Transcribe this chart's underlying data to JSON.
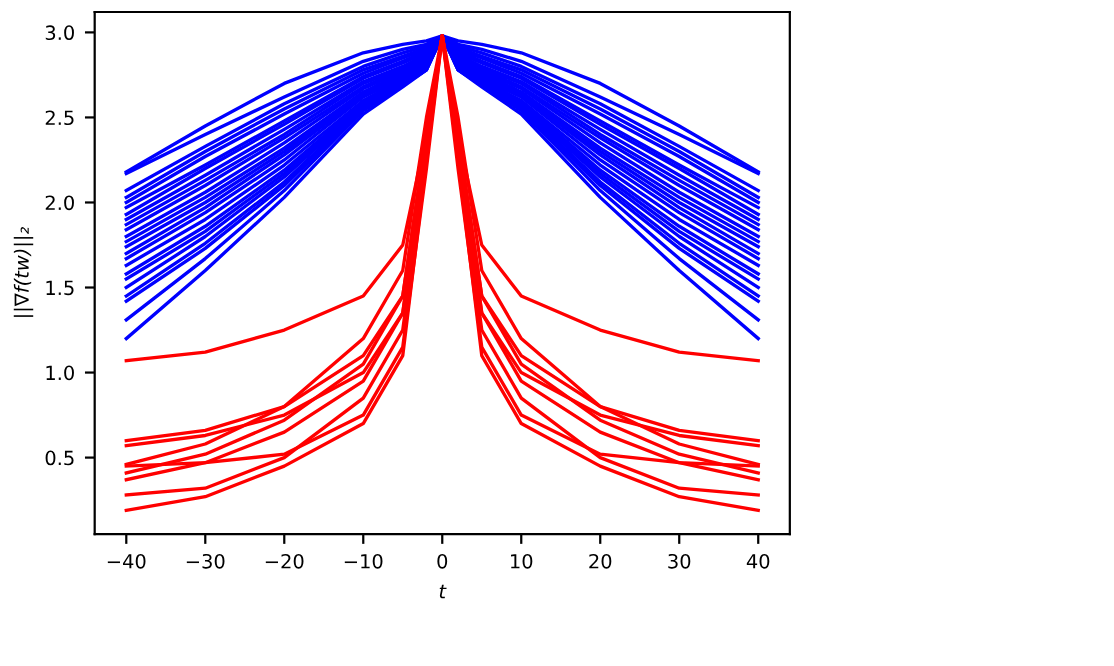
{
  "chart_data": {
    "type": "line",
    "xlabel": "t",
    "ylabel": "||∇f(tw)||₂",
    "x": [
      -40,
      -30,
      -20,
      -10,
      -5,
      -2,
      0,
      2,
      5,
      10,
      20,
      30,
      40
    ],
    "xlim": [
      -44,
      44
    ],
    "ylim": [
      0.05,
      3.12
    ],
    "xticks": [
      {
        "value": -40,
        "label": "−40"
      },
      {
        "value": -30,
        "label": "−30"
      },
      {
        "value": -20,
        "label": "−20"
      },
      {
        "value": -10,
        "label": "−10"
      },
      0,
      10,
      20,
      30,
      40
    ],
    "yticks": [
      0.5,
      {
        "value": 1,
        "label": "1.0"
      },
      1.5,
      {
        "value": 2,
        "label": "2.0"
      },
      2.5,
      {
        "value": 3,
        "label": "3.0"
      }
    ],
    "grid": false,
    "legend": false,
    "marker": "none",
    "line_style": "solid",
    "series": [
      {
        "color": "#0000ff",
        "values": [
          2.18,
          2.45,
          2.7,
          2.88,
          2.93,
          2.95,
          2.98,
          2.95,
          2.93,
          2.88,
          2.7,
          2.45,
          2.18
        ]
      },
      {
        "color": "#0000ff",
        "values": [
          2.17,
          2.4,
          2.62,
          2.83,
          2.9,
          2.93,
          2.98,
          2.93,
          2.9,
          2.83,
          2.62,
          2.4,
          2.17
        ]
      },
      {
        "color": "#0000ff",
        "values": [
          2.07,
          2.33,
          2.58,
          2.8,
          2.88,
          2.92,
          2.98,
          2.92,
          2.88,
          2.8,
          2.58,
          2.33,
          2.07
        ]
      },
      {
        "color": "#0000ff",
        "values": [
          2.03,
          2.3,
          2.55,
          2.78,
          2.86,
          2.91,
          2.98,
          2.91,
          2.86,
          2.78,
          2.55,
          2.3,
          2.03
        ]
      },
      {
        "color": "#0000ff",
        "values": [
          2.0,
          2.27,
          2.52,
          2.76,
          2.85,
          2.9,
          2.98,
          2.9,
          2.85,
          2.76,
          2.52,
          2.27,
          2.0
        ]
      },
      {
        "color": "#0000ff",
        "values": [
          1.97,
          2.22,
          2.48,
          2.74,
          2.83,
          2.89,
          2.98,
          2.89,
          2.83,
          2.74,
          2.48,
          2.22,
          1.97
        ]
      },
      {
        "color": "#0000ff",
        "values": [
          1.93,
          2.2,
          2.46,
          2.73,
          2.82,
          2.88,
          2.98,
          2.88,
          2.82,
          2.73,
          2.46,
          2.2,
          1.93
        ]
      },
      {
        "color": "#0000ff",
        "values": [
          1.9,
          2.16,
          2.43,
          2.71,
          2.8,
          2.87,
          2.98,
          2.87,
          2.8,
          2.71,
          2.43,
          2.16,
          1.9
        ]
      },
      {
        "color": "#0000ff",
        "values": [
          1.87,
          2.13,
          2.4,
          2.7,
          2.79,
          2.86,
          2.98,
          2.86,
          2.79,
          2.7,
          2.4,
          2.13,
          1.87
        ]
      },
      {
        "color": "#0000ff",
        "values": [
          1.84,
          2.1,
          2.38,
          2.68,
          2.78,
          2.85,
          2.98,
          2.85,
          2.78,
          2.68,
          2.38,
          2.1,
          1.84
        ]
      },
      {
        "color": "#0000ff",
        "values": [
          1.8,
          2.06,
          2.35,
          2.67,
          2.77,
          2.84,
          2.98,
          2.84,
          2.77,
          2.67,
          2.35,
          2.06,
          1.8
        ]
      },
      {
        "color": "#0000ff",
        "values": [
          1.77,
          2.03,
          2.32,
          2.65,
          2.76,
          2.84,
          2.98,
          2.84,
          2.76,
          2.65,
          2.32,
          2.03,
          1.77
        ]
      },
      {
        "color": "#0000ff",
        "values": [
          1.74,
          2.0,
          2.3,
          2.64,
          2.75,
          2.83,
          2.98,
          2.83,
          2.75,
          2.64,
          2.3,
          2.0,
          1.74
        ]
      },
      {
        "color": "#0000ff",
        "values": [
          1.7,
          1.97,
          2.28,
          2.63,
          2.74,
          2.82,
          2.98,
          2.82,
          2.74,
          2.63,
          2.28,
          1.97,
          1.7
        ]
      },
      {
        "color": "#0000ff",
        "values": [
          1.67,
          1.94,
          2.25,
          2.62,
          2.73,
          2.82,
          2.98,
          2.82,
          2.73,
          2.62,
          2.25,
          1.94,
          1.67
        ]
      },
      {
        "color": "#0000ff",
        "values": [
          1.63,
          1.9,
          2.22,
          2.6,
          2.72,
          2.81,
          2.98,
          2.81,
          2.72,
          2.6,
          2.22,
          1.9,
          1.63
        ]
      },
      {
        "color": "#0000ff",
        "values": [
          1.58,
          1.86,
          2.19,
          2.59,
          2.72,
          2.8,
          2.98,
          2.8,
          2.72,
          2.59,
          2.19,
          1.86,
          1.58
        ]
      },
      {
        "color": "#0000ff",
        "values": [
          1.55,
          1.83,
          2.17,
          2.58,
          2.71,
          2.8,
          2.98,
          2.8,
          2.71,
          2.58,
          2.17,
          1.83,
          1.55
        ]
      },
      {
        "color": "#0000ff",
        "values": [
          1.5,
          1.8,
          2.15,
          2.57,
          2.7,
          2.79,
          2.98,
          2.79,
          2.7,
          2.57,
          2.15,
          1.8,
          1.5
        ]
      },
      {
        "color": "#0000ff",
        "values": [
          1.45,
          1.76,
          2.12,
          2.56,
          2.7,
          2.79,
          2.98,
          2.79,
          2.7,
          2.56,
          2.12,
          1.76,
          1.45
        ]
      },
      {
        "color": "#0000ff",
        "values": [
          1.42,
          1.73,
          2.1,
          2.55,
          2.69,
          2.78,
          2.98,
          2.78,
          2.69,
          2.55,
          2.1,
          1.73,
          1.42
        ]
      },
      {
        "color": "#0000ff",
        "values": [
          1.31,
          1.67,
          2.07,
          2.54,
          2.69,
          2.78,
          2.98,
          2.78,
          2.69,
          2.54,
          2.07,
          1.67,
          1.31
        ]
      },
      {
        "color": "#0000ff",
        "values": [
          1.2,
          1.6,
          2.03,
          2.52,
          2.68,
          2.78,
          2.98,
          2.78,
          2.68,
          2.52,
          2.03,
          1.6,
          1.2
        ]
      },
      {
        "color": "#ff0000",
        "values": [
          1.07,
          1.12,
          1.25,
          1.45,
          1.75,
          2.4,
          2.98,
          2.4,
          1.75,
          1.45,
          1.25,
          1.12,
          1.07
        ]
      },
      {
        "color": "#ff0000",
        "values": [
          0.6,
          0.66,
          0.8,
          1.1,
          1.45,
          2.4,
          2.98,
          2.4,
          1.45,
          1.1,
          0.8,
          0.66,
          0.6
        ]
      },
      {
        "color": "#ff0000",
        "values": [
          0.57,
          0.63,
          0.75,
          1.0,
          1.35,
          2.35,
          2.98,
          2.35,
          1.35,
          1.0,
          0.75,
          0.63,
          0.57
        ]
      },
      {
        "color": "#ff0000",
        "values": [
          0.46,
          0.58,
          0.8,
          1.2,
          1.6,
          2.5,
          2.98,
          2.5,
          1.6,
          1.2,
          0.8,
          0.58,
          0.46
        ]
      },
      {
        "color": "#ff0000",
        "values": [
          0.45,
          0.47,
          0.52,
          0.75,
          1.15,
          2.2,
          2.98,
          2.2,
          1.15,
          0.75,
          0.52,
          0.47,
          0.45
        ]
      },
      {
        "color": "#ff0000",
        "values": [
          0.41,
          0.52,
          0.72,
          1.05,
          1.45,
          2.4,
          2.98,
          2.4,
          1.45,
          1.05,
          0.72,
          0.52,
          0.41
        ]
      },
      {
        "color": "#ff0000",
        "values": [
          0.37,
          0.47,
          0.65,
          0.95,
          1.35,
          2.35,
          2.98,
          2.35,
          1.35,
          0.95,
          0.65,
          0.47,
          0.37
        ]
      },
      {
        "color": "#ff0000",
        "values": [
          0.28,
          0.32,
          0.5,
          0.85,
          1.25,
          2.3,
          2.98,
          2.3,
          1.25,
          0.85,
          0.5,
          0.32,
          0.28
        ]
      },
      {
        "color": "#ff0000",
        "values": [
          0.19,
          0.27,
          0.45,
          0.7,
          1.1,
          2.25,
          2.98,
          2.25,
          1.1,
          0.7,
          0.45,
          0.27,
          0.19
        ]
      }
    ]
  }
}
